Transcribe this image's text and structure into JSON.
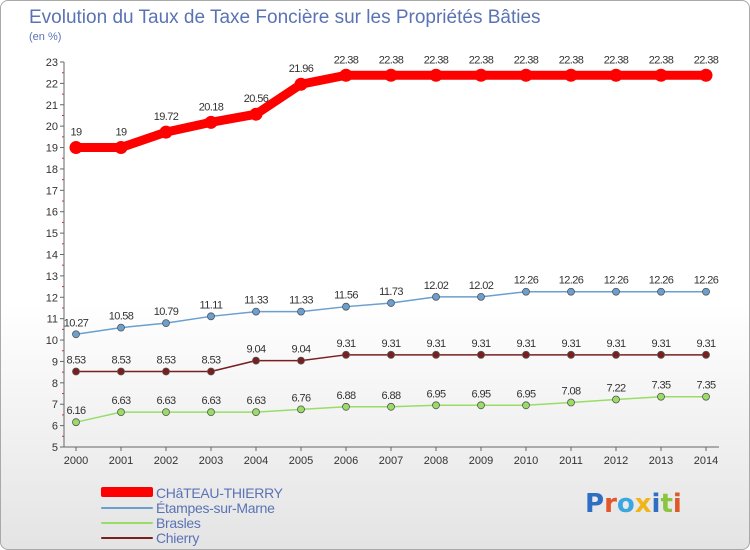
{
  "title": "Evolution du Taux de Taxe Foncière sur les Propriétés Bâties",
  "unit_label": "(en %)",
  "logo": {
    "text": "Proxiti",
    "letter_colors": [
      "#2e6fc4",
      "#e0582a",
      "#3aa7df",
      "#f1b51c",
      "#2e6fc4",
      "#8bc53f",
      "#e0582a"
    ]
  },
  "chart_data": {
    "type": "line",
    "title": "Evolution du Taux de Taxe Foncière sur les Propriétés Bâties",
    "ylabel": "(en %)",
    "xlabel": "",
    "x": [
      2000,
      2001,
      2002,
      2003,
      2004,
      2005,
      2006,
      2007,
      2008,
      2009,
      2010,
      2011,
      2012,
      2013,
      2014
    ],
    "ylim": [
      5,
      23
    ],
    "yticks": [
      5,
      6,
      7,
      8,
      9,
      10,
      11,
      12,
      13,
      14,
      15,
      16,
      17,
      18,
      19,
      20,
      21,
      22,
      23
    ],
    "grid": false,
    "legend_position": "bottom-left",
    "series": [
      {
        "name": "CHâTEAU-THIERRY",
        "color": "#ff0000",
        "values": [
          19,
          19,
          19.72,
          20.18,
          20.56,
          21.96,
          22.38,
          22.38,
          22.38,
          22.38,
          22.38,
          22.38,
          22.38,
          22.38,
          22.38
        ],
        "labels": [
          "19",
          "19",
          "19.72",
          "20.18",
          "20.56",
          "21.96",
          "22.38",
          "22.38",
          "22.38",
          "22.38",
          "22.38",
          "22.38",
          "22.38",
          "22.38",
          "22.38"
        ]
      },
      {
        "name": "Étampes-sur-Marne",
        "color": "#6a9fcf",
        "values": [
          10.27,
          10.58,
          10.79,
          11.11,
          11.33,
          11.33,
          11.56,
          11.73,
          12.02,
          12.02,
          12.26,
          12.26,
          12.26,
          12.26,
          12.26
        ],
        "labels": [
          "10.27",
          "10.58",
          "10.79",
          "11.11",
          "11.33",
          "11.33",
          "11.56",
          "11.73",
          "12.02",
          "12.02",
          "12.26",
          "12.26",
          "12.26",
          "12.26",
          "12.26"
        ]
      },
      {
        "name": "Brasles",
        "color": "#99dd66",
        "values": [
          6.16,
          6.63,
          6.63,
          6.63,
          6.63,
          6.76,
          6.88,
          6.88,
          6.95,
          6.95,
          6.95,
          7.08,
          7.22,
          7.35,
          7.35
        ],
        "labels": [
          "6.16",
          "6.63",
          "6.63",
          "6.63",
          "6.63",
          "6.76",
          "6.88",
          "6.88",
          "6.95",
          "6.95",
          "6.95",
          "7.08",
          "7.22",
          "7.35",
          "7.35"
        ]
      },
      {
        "name": "Chierry",
        "color": "#7a1f1f",
        "values": [
          8.53,
          8.53,
          8.53,
          8.53,
          9.04,
          9.04,
          9.31,
          9.31,
          9.31,
          9.31,
          9.31,
          9.31,
          9.31,
          9.31,
          9.31
        ],
        "labels": [
          "8.53",
          "8.53",
          "8.53",
          "8.53",
          "9.04",
          "9.04",
          "9.31",
          "9.31",
          "9.31",
          "9.31",
          "9.31",
          "9.31",
          "9.31",
          "9.31",
          "9.31"
        ]
      }
    ]
  }
}
